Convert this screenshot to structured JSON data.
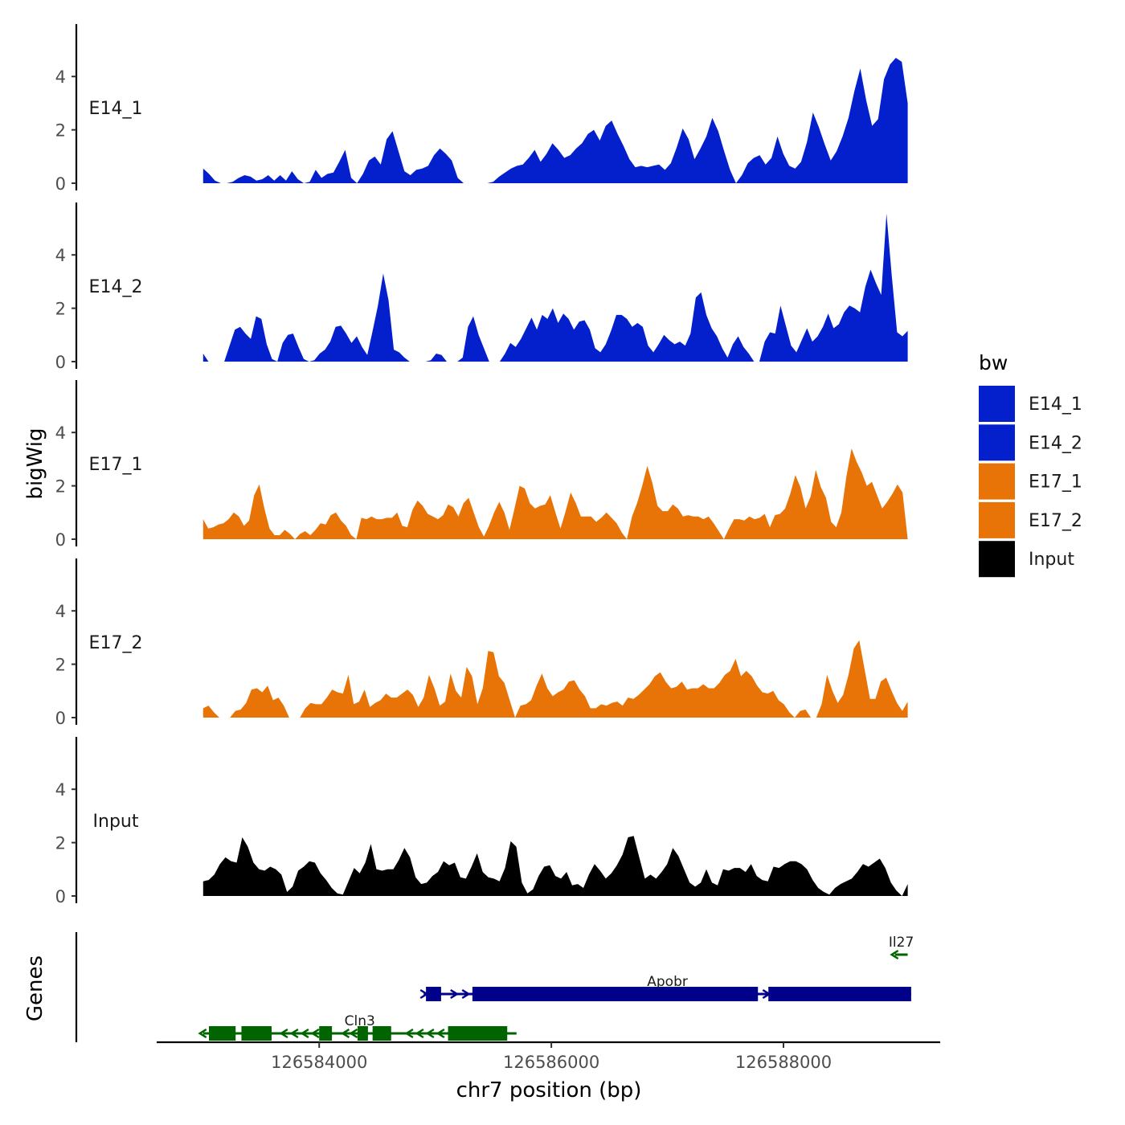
{
  "chart_data": {
    "type": "area",
    "y_title": "bigWig",
    "x_title": "chr7 position (bp)",
    "genes_title": "Genes",
    "x_range": [
      126582600,
      126589350
    ],
    "data_x_range": [
      126583000,
      126589070
    ],
    "ylim": [
      0,
      6
    ],
    "y_ticks": [
      "0",
      "2",
      "4"
    ],
    "x_ticks": [
      {
        "value": 126584000,
        "label": "126584000"
      },
      {
        "value": 126586000,
        "label": "126586000"
      },
      {
        "value": 126588000,
        "label": "126588000"
      }
    ],
    "legend": {
      "title": "bw",
      "entries": [
        {
          "label": "E14_1",
          "color": "#0420cc"
        },
        {
          "label": "E14_2",
          "color": "#0420cc"
        },
        {
          "label": "E17_1",
          "color": "#e87407"
        },
        {
          "label": "E17_2",
          "color": "#e87407"
        },
        {
          "label": "Input",
          "color": "#000000"
        }
      ]
    },
    "series": [
      {
        "name": "E14_1",
        "color": "#0420cc",
        "values": [
          0.55,
          0.35,
          0.1,
          0.0,
          0.0,
          0.05,
          0.2,
          0.3,
          0.25,
          0.1,
          0.15,
          0.3,
          0.1,
          0.3,
          0.1,
          0.45,
          0.15,
          0.0,
          0.05,
          0.5,
          0.2,
          0.35,
          0.4,
          0.8,
          1.25,
          0.2,
          0.0,
          0.35,
          0.85,
          1.0,
          0.7,
          1.65,
          1.95,
          1.2,
          0.45,
          0.3,
          0.5,
          0.55,
          0.65,
          1.05,
          1.3,
          1.1,
          0.85,
          0.2,
          0.0,
          0.0,
          0.0,
          0.0,
          0.0,
          0.05,
          0.25,
          0.4,
          0.55,
          0.65,
          0.7,
          0.95,
          1.25,
          0.8,
          1.1,
          1.5,
          1.25,
          0.95,
          1.05,
          1.3,
          1.5,
          1.85,
          2.0,
          1.6,
          2.15,
          2.35,
          1.85,
          1.4,
          0.9,
          0.6,
          0.65,
          0.6,
          0.65,
          0.7,
          0.5,
          0.75,
          1.35,
          2.05,
          1.65,
          0.9,
          1.3,
          1.75,
          2.45,
          1.95,
          1.2,
          0.5,
          0.0,
          0.3,
          0.75,
          0.95,
          1.05,
          0.7,
          0.95,
          1.75,
          1.1,
          0.65,
          0.55,
          0.8,
          1.55,
          2.65,
          2.1,
          1.45,
          0.85,
          1.2,
          1.75,
          2.45,
          3.45,
          4.3,
          3.1,
          2.15,
          2.4,
          3.9,
          4.45,
          4.7,
          4.55,
          3.0
        ]
      },
      {
        "name": "E14_2",
        "color": "#0420cc",
        "values": [
          0.3,
          0.0,
          0.0,
          0.0,
          0.0,
          0.6,
          1.2,
          1.3,
          1.05,
          0.85,
          1.7,
          1.6,
          0.65,
          0.1,
          0.0,
          0.7,
          1.0,
          1.05,
          0.55,
          0.1,
          0.0,
          0.05,
          0.3,
          0.45,
          0.75,
          1.3,
          1.35,
          1.05,
          0.7,
          0.95,
          0.55,
          0.25,
          1.15,
          2.1,
          3.3,
          2.3,
          0.45,
          0.35,
          0.15,
          0.0,
          0.0,
          0.0,
          0.0,
          0.05,
          0.3,
          0.25,
          0.0,
          0.0,
          0.0,
          0.15,
          1.3,
          1.7,
          1.0,
          0.5,
          0.0,
          0.0,
          0.0,
          0.3,
          0.7,
          0.55,
          0.85,
          1.25,
          1.65,
          1.2,
          1.75,
          1.6,
          2.0,
          1.45,
          1.8,
          1.6,
          1.2,
          1.5,
          1.55,
          1.2,
          0.5,
          0.35,
          0.65,
          1.15,
          1.75,
          1.75,
          1.6,
          1.3,
          1.45,
          1.3,
          0.6,
          0.35,
          0.65,
          1.0,
          0.8,
          0.65,
          0.75,
          0.6,
          1.05,
          2.4,
          2.6,
          1.75,
          1.25,
          0.95,
          0.5,
          0.15,
          0.65,
          0.95,
          0.55,
          0.3,
          0.0,
          0.0,
          0.75,
          1.1,
          1.05,
          2.1,
          1.35,
          0.6,
          0.35,
          0.8,
          1.25,
          0.75,
          0.95,
          1.3,
          1.8,
          1.25,
          1.4,
          1.85,
          2.1,
          2.0,
          1.85,
          2.8,
          3.45,
          2.95,
          2.5,
          5.55,
          3.2,
          1.1,
          0.95,
          1.15
        ]
      },
      {
        "name": "E17_1",
        "color": "#e87407",
        "values": [
          0.75,
          0.4,
          0.45,
          0.55,
          0.6,
          0.75,
          1.0,
          0.85,
          0.5,
          0.7,
          1.65,
          2.05,
          1.15,
          0.4,
          0.15,
          0.15,
          0.35,
          0.2,
          0.0,
          0.2,
          0.3,
          0.15,
          0.35,
          0.6,
          0.55,
          0.9,
          1.0,
          0.7,
          0.5,
          0.15,
          0.0,
          0.8,
          0.75,
          0.85,
          0.75,
          0.75,
          0.8,
          0.8,
          1.0,
          0.5,
          0.45,
          1.1,
          1.45,
          1.25,
          0.95,
          0.85,
          0.75,
          0.9,
          1.3,
          1.2,
          0.85,
          1.35,
          1.55,
          1.0,
          0.45,
          0.1,
          0.5,
          1.0,
          1.4,
          1.0,
          0.35,
          1.15,
          2.0,
          1.9,
          1.35,
          1.15,
          1.25,
          1.3,
          1.65,
          1.0,
          0.4,
          1.05,
          1.75,
          1.35,
          0.85,
          0.85,
          0.85,
          0.65,
          0.8,
          1.0,
          0.8,
          0.6,
          0.25,
          0.0,
          0.85,
          1.35,
          2.0,
          2.75,
          2.1,
          1.25,
          1.05,
          1.05,
          1.3,
          1.15,
          0.85,
          0.9,
          0.85,
          0.85,
          0.75,
          0.85,
          0.6,
          0.3,
          0.0,
          0.4,
          0.75,
          0.75,
          0.7,
          0.85,
          0.75,
          0.8,
          0.95,
          0.45,
          0.9,
          0.95,
          1.15,
          1.7,
          2.4,
          1.95,
          1.15,
          1.6,
          2.6,
          1.95,
          1.55,
          0.65,
          0.45,
          1.0,
          2.35,
          3.4,
          2.9,
          2.5,
          2.0,
          2.15,
          1.65,
          1.15,
          1.4,
          1.7,
          2.05,
          1.75,
          0.0
        ]
      },
      {
        "name": "E17_2",
        "color": "#e87407",
        "values": [
          0.35,
          0.45,
          0.2,
          0.0,
          0.0,
          0.0,
          0.25,
          0.3,
          0.55,
          1.05,
          1.1,
          0.95,
          1.2,
          0.65,
          0.75,
          0.45,
          0.0,
          0.0,
          0.0,
          0.35,
          0.55,
          0.5,
          0.5,
          0.75,
          1.05,
          0.95,
          0.9,
          1.6,
          0.5,
          0.6,
          1.05,
          0.4,
          0.55,
          0.65,
          0.9,
          0.75,
          0.75,
          0.9,
          1.05,
          0.85,
          0.4,
          0.75,
          1.6,
          1.1,
          0.45,
          0.6,
          1.65,
          1.0,
          0.75,
          1.9,
          1.55,
          0.5,
          1.1,
          2.5,
          2.45,
          1.55,
          1.3,
          0.65,
          0.0,
          0.45,
          0.5,
          0.65,
          1.2,
          1.65,
          1.1,
          0.8,
          0.95,
          1.05,
          1.35,
          1.4,
          1.05,
          0.8,
          0.35,
          0.35,
          0.5,
          0.45,
          0.55,
          0.6,
          0.45,
          0.75,
          0.7,
          0.85,
          1.05,
          1.25,
          1.55,
          1.7,
          1.35,
          1.1,
          1.15,
          1.35,
          1.05,
          1.1,
          1.1,
          1.25,
          1.1,
          1.1,
          1.3,
          1.6,
          1.75,
          2.2,
          1.55,
          1.75,
          1.55,
          1.2,
          0.95,
          0.9,
          1.0,
          0.65,
          0.5,
          0.2,
          0.0,
          0.25,
          0.3,
          0.0,
          0.0,
          0.5,
          1.6,
          1.0,
          0.55,
          0.85,
          1.6,
          2.6,
          2.9,
          1.8,
          0.7,
          0.7,
          1.35,
          1.5,
          1.0,
          0.55,
          0.25,
          0.6
        ]
      },
      {
        "name": "Input",
        "color": "#000000",
        "values": [
          0.55,
          0.6,
          0.8,
          1.2,
          1.45,
          1.3,
          1.25,
          2.2,
          1.85,
          1.25,
          1.0,
          0.95,
          1.1,
          1.0,
          0.8,
          0.15,
          0.35,
          0.95,
          1.1,
          1.3,
          1.25,
          0.85,
          0.6,
          0.3,
          0.1,
          0.05,
          0.55,
          1.05,
          0.85,
          1.25,
          1.95,
          1.0,
          0.95,
          1.0,
          1.0,
          1.35,
          1.8,
          1.45,
          0.7,
          0.45,
          0.5,
          0.75,
          0.9,
          1.3,
          1.15,
          1.25,
          0.7,
          0.65,
          1.1,
          1.6,
          0.9,
          0.7,
          0.65,
          0.55,
          1.05,
          2.05,
          1.85,
          0.5,
          0.1,
          0.25,
          0.75,
          1.1,
          1.15,
          0.75,
          0.65,
          0.9,
          0.4,
          0.45,
          0.3,
          0.8,
          1.2,
          0.95,
          0.65,
          0.85,
          1.15,
          1.55,
          2.2,
          2.25,
          1.45,
          0.65,
          0.8,
          0.65,
          0.9,
          1.2,
          1.8,
          1.5,
          1.0,
          0.5,
          0.35,
          0.5,
          1.0,
          0.5,
          0.4,
          1.0,
          0.95,
          1.05,
          1.05,
          0.9,
          1.2,
          0.75,
          0.6,
          0.55,
          1.1,
          1.05,
          1.2,
          1.3,
          1.3,
          1.2,
          1.0,
          0.6,
          0.3,
          0.15,
          0.05,
          0.3,
          0.45,
          0.55,
          0.65,
          0.9,
          1.2,
          1.1,
          1.25,
          1.4,
          1.05,
          0.5,
          0.2,
          0.0,
          0.45
        ]
      }
    ],
    "genes": [
      {
        "name": "Cln3",
        "strand": "-",
        "color": "#006400",
        "row": 2,
        "start": 126583000,
        "end": 126585700,
        "exons": [
          [
            126583050,
            126583280
          ],
          [
            126583330,
            126583590
          ],
          [
            126584000,
            126584110
          ],
          [
            126584330,
            126584420
          ],
          [
            126584460,
            126584620
          ],
          [
            126585110,
            126585620
          ]
        ],
        "arrows": [
          126583000,
          126583700,
          126583790,
          126583880,
          126583970,
          126584230,
          126584300,
          126584780,
          126584870,
          126584960,
          126585050
        ]
      },
      {
        "name": "Apobr",
        "strand": "+",
        "color": "#00008b",
        "row": 1,
        "start": 126584900,
        "end": 126589100,
        "exons": [
          [
            126584920,
            126585050
          ],
          [
            126585320,
            126587780
          ],
          [
            126587870,
            126589100
          ]
        ],
        "arrows": [
          126584900,
          126585160,
          126585260,
          126587850
        ]
      },
      {
        "name": "Il27",
        "strand": "-",
        "color": "#006400",
        "row": 0,
        "start": 126588960,
        "end": 126589070,
        "exons": [],
        "arrows": [
          126588960
        ]
      }
    ]
  }
}
